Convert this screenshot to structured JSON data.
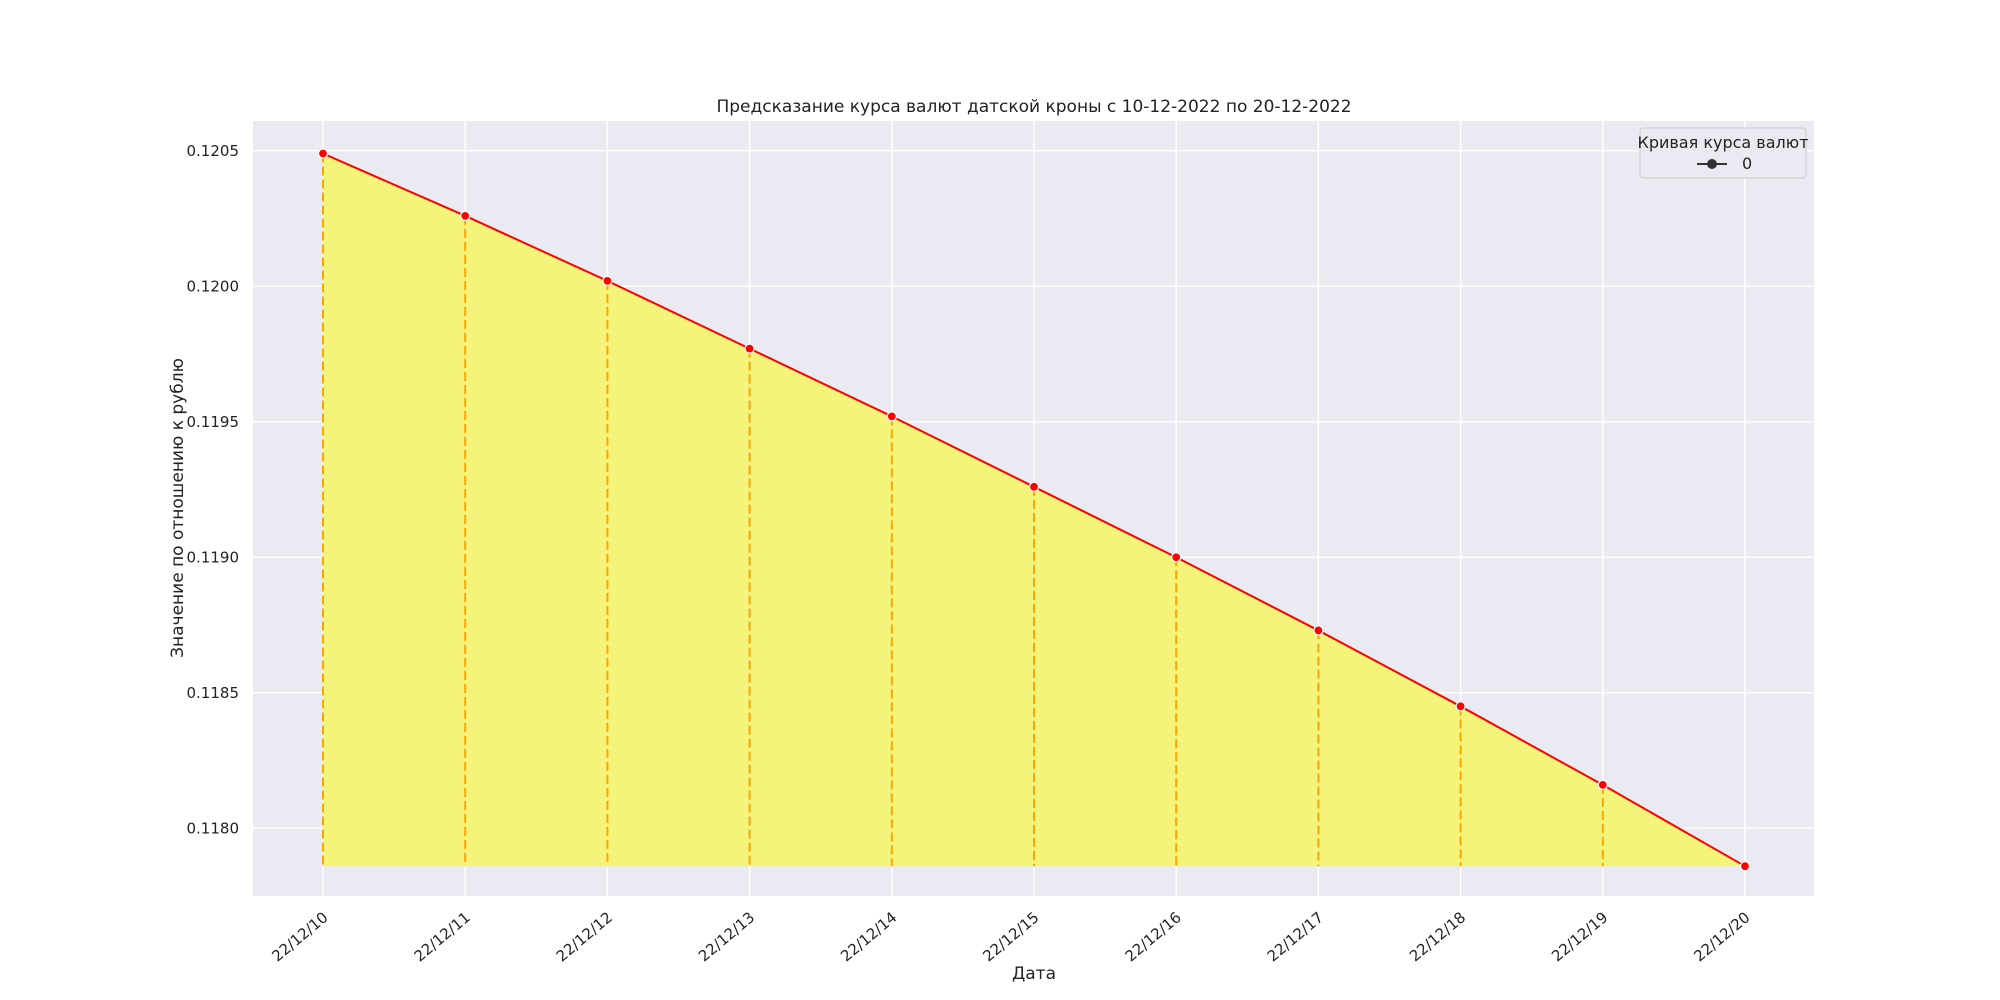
{
  "chart_data": {
    "type": "line",
    "title": "Предсказание курса валют датской кроны с 10-12-2022 по 20-12-2022",
    "xlabel": "Дата",
    "ylabel": "Значение по отношению к рублю",
    "x": [
      "22/12/10",
      "22/12/11",
      "22/12/12",
      "22/12/13",
      "22/12/14",
      "22/12/15",
      "22/12/16",
      "22/12/17",
      "22/12/18",
      "22/12/19",
      "22/12/20"
    ],
    "series": [
      {
        "name": "0",
        "values": [
          0.12049,
          0.12026,
          0.12002,
          0.11977,
          0.11952,
          0.11926,
          0.119,
          0.11873,
          0.11845,
          0.11816,
          0.11786
        ]
      }
    ],
    "yticks": [
      "0.1180",
      "0.1185",
      "0.1190",
      "0.1195",
      "0.1200",
      "0.1205"
    ],
    "ytick_values": [
      0.118,
      0.1185,
      0.119,
      0.1195,
      0.12,
      0.1205
    ],
    "ylim": [
      0.11775,
      0.12061
    ],
    "grid": true,
    "legend": {
      "title": "Кривая курса валют",
      "placement": "top-right"
    },
    "colors": {
      "plot_background": "#eaeaf2",
      "line": "#ff0000",
      "fill": "#f4f47a",
      "dropline": "#ffa500",
      "grid": "#ffffff",
      "legend_marker": "#333333"
    }
  }
}
